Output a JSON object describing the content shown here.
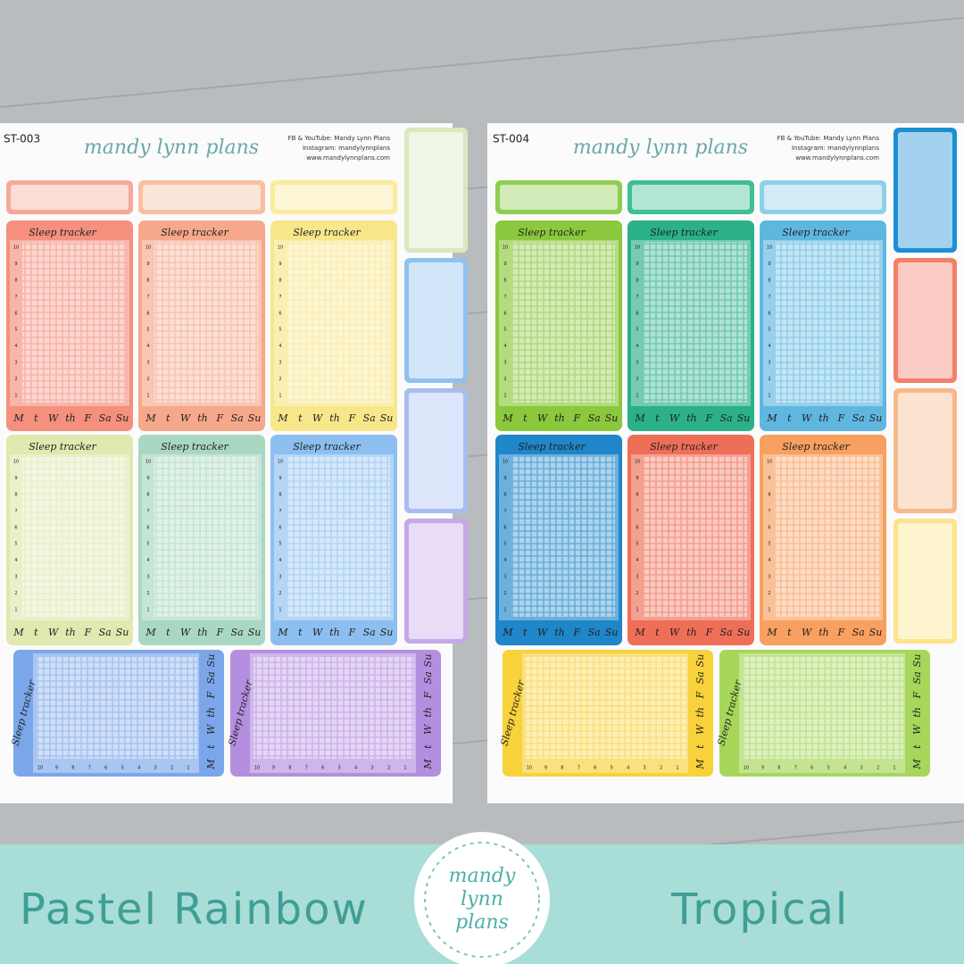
{
  "sheets": [
    {
      "code": "ST-003",
      "brand": "mandy lynn plans",
      "contact": [
        "FB & YouTube: Mandy Lynn Plans",
        "Instagram: mandylynnplans",
        "www.mandylynnplans.com"
      ]
    },
    {
      "code": "ST-004",
      "brand": "mandy lynn plans",
      "contact": [
        "FB & YouTube: Mandy Lynn Plans",
        "Instagram: mandylynnplans",
        "www.mandylynnplans.com"
      ]
    }
  ],
  "tracker": {
    "title": "Sleep tracker",
    "days": [
      "M",
      "t",
      "W",
      "th",
      "F",
      "Sa",
      "Su"
    ],
    "hours": [
      "10",
      "9",
      "8",
      "7",
      "6",
      "5",
      "4",
      "3",
      "2",
      "1"
    ]
  },
  "banner": {
    "left": "Pastel Rainbow",
    "right": "Tropical",
    "logo": [
      "mandy",
      "lynn",
      "plans"
    ]
  }
}
